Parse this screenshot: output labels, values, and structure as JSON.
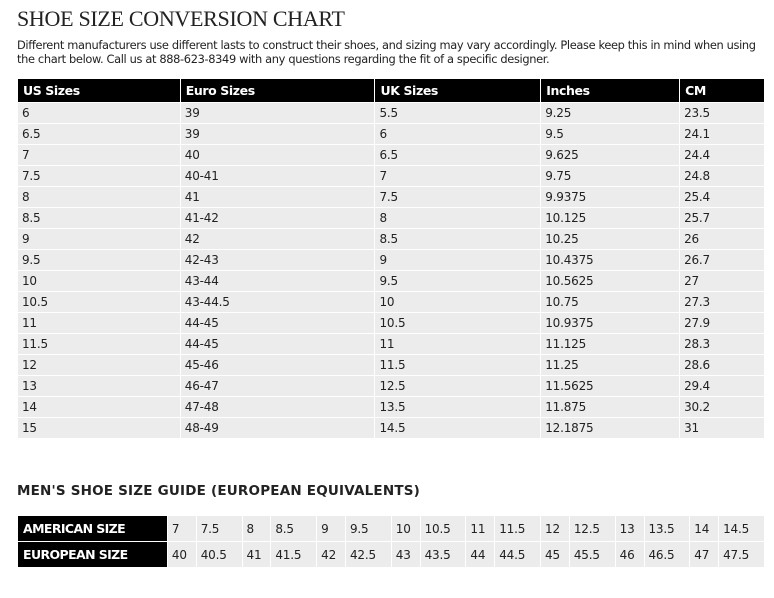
{
  "title": "SHOE SIZE CONVERSION CHART",
  "intro": "Different manufacturers use different lasts to construct their shoes, and sizing may vary accordingly. Please keep this in mind when using the chart below. Call us at 888-623-8349 with any questions regarding the fit of a specific designer.",
  "conversion": {
    "headers": [
      "US Sizes",
      "Euro Sizes",
      "UK Sizes",
      "Inches",
      "CM"
    ],
    "rows": [
      [
        "6",
        "39",
        "5.5",
        "9.25",
        "23.5"
      ],
      [
        "6.5",
        "39",
        "6",
        "9.5",
        "24.1"
      ],
      [
        "7",
        "40",
        "6.5",
        "9.625",
        "24.4"
      ],
      [
        "7.5",
        "40-41",
        "7",
        "9.75",
        "24.8"
      ],
      [
        "8",
        "41",
        "7.5",
        "9.9375",
        "25.4"
      ],
      [
        "8.5",
        "41-42",
        "8",
        "10.125",
        "25.7"
      ],
      [
        "9",
        "42",
        "8.5",
        "10.25",
        "26"
      ],
      [
        "9.5",
        "42-43",
        "9",
        "10.4375",
        "26.7"
      ],
      [
        "10",
        "43-44",
        "9.5",
        "10.5625",
        "27"
      ],
      [
        "10.5",
        "43-44.5",
        "10",
        "10.75",
        "27.3"
      ],
      [
        "11",
        "44-45",
        "10.5",
        "10.9375",
        "27.9"
      ],
      [
        "11.5",
        "44-45",
        "11",
        "11.125",
        "28.3"
      ],
      [
        "12",
        "45-46",
        "11.5",
        "11.25",
        "28.6"
      ],
      [
        "13",
        "46-47",
        "12.5",
        "11.5625",
        "29.4"
      ],
      [
        "14",
        "47-48",
        "13.5",
        "11.875",
        "30.2"
      ],
      [
        "15",
        "48-49",
        "14.5",
        "12.1875",
        "31"
      ]
    ]
  },
  "guide": {
    "title": "MEN'S SHOE SIZE GUIDE (EUROPEAN EQUIVALENTS)",
    "rows": [
      {
        "label": "AMERICAN SIZE",
        "values": [
          "7",
          "7.5",
          "8",
          "8.5",
          "9",
          "9.5",
          "10",
          "10.5",
          "11",
          "11.5",
          "12",
          "12.5",
          "13",
          "13.5",
          "14",
          "14.5"
        ]
      },
      {
        "label": "EUROPEAN SIZE",
        "values": [
          "40",
          "40.5",
          "41",
          "41.5",
          "42",
          "42.5",
          "43",
          "43.5",
          "44",
          "44.5",
          "45",
          "45.5",
          "46",
          "46.5",
          "47",
          "47.5"
        ]
      }
    ]
  }
}
